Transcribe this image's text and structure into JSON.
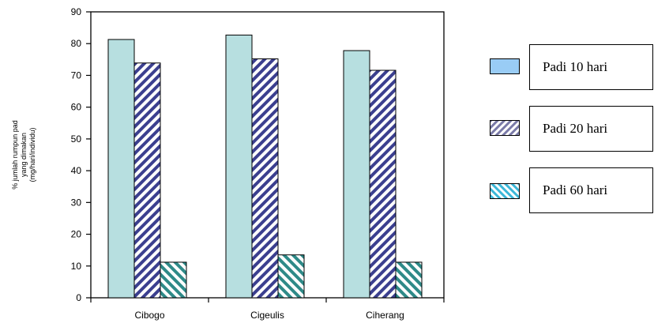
{
  "chart_data": {
    "type": "bar",
    "categories": [
      "Cibogo",
      "Cigeulis",
      "Ciherang"
    ],
    "series": [
      {
        "name": "Padi 10 hari",
        "values": [
          81.3,
          82.7,
          77.8
        ],
        "color": "#b7dfe0",
        "pattern": "solid"
      },
      {
        "name": "Padi 20 hari",
        "values": [
          73.9,
          75.2,
          71.6
        ],
        "color": "#3b3f8f",
        "pattern": "diagonal-stripes"
      },
      {
        "name": "Padi 60 hari",
        "values": [
          11.2,
          13.5,
          11.2
        ],
        "color": "#2e8a88",
        "pattern": "diagonal-stripes-reverse"
      }
    ],
    "ylim": [
      0,
      90
    ],
    "yticks": [
      0,
      10,
      20,
      30,
      40,
      50,
      60,
      70,
      80,
      90
    ],
    "ylabel_lines": [
      "% jumlah rumpun pad",
      "yang dimakan",
      "(mg/hari/individu)"
    ],
    "xlabel": "",
    "grid": false,
    "legend_position": "right"
  }
}
